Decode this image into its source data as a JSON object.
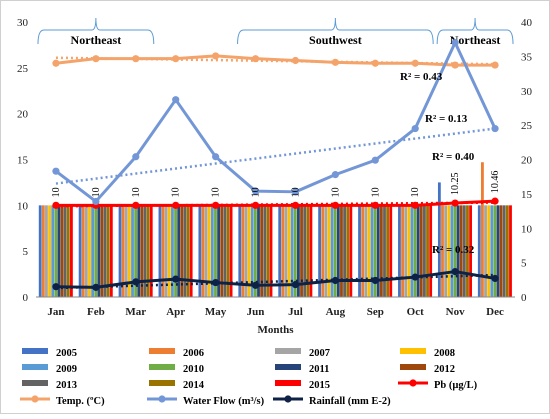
{
  "chart_data": {
    "type": "bar",
    "categories": [
      "Jan",
      "Feb",
      "Mar",
      "Apr",
      "May",
      "Jun",
      "Jul",
      "Aug",
      "Sep",
      "Oct",
      "Nov",
      "Dec"
    ],
    "xlabel": "Months",
    "ylim_left": [
      0,
      30
    ],
    "yticks_left": [
      0,
      5,
      10,
      15,
      20,
      25,
      30
    ],
    "ylim_right": [
      0,
      40
    ],
    "yticks_right": [
      0,
      5,
      10,
      15,
      20,
      25,
      30,
      35,
      40
    ],
    "grid": false,
    "legend_position": "bottom",
    "bar_series": [
      {
        "name": "2005",
        "color": "#4472c4",
        "values": [
          10,
          10,
          10,
          10,
          10,
          10,
          10,
          10,
          10,
          10,
          12.5,
          10
        ]
      },
      {
        "name": "2006",
        "color": "#ed7d31",
        "values": [
          10,
          10,
          10,
          10,
          10,
          10,
          10,
          10,
          10,
          10,
          10,
          14.7
        ]
      },
      {
        "name": "2007",
        "color": "#a5a5a5",
        "values": [
          10,
          10,
          10,
          10,
          10,
          10,
          10,
          10,
          10,
          10,
          10,
          10
        ]
      },
      {
        "name": "2008",
        "color": "#ffc000",
        "values": [
          10,
          10,
          10,
          10,
          10,
          10,
          10,
          10,
          10,
          10,
          10,
          10
        ]
      },
      {
        "name": "2009",
        "color": "#5b9bd5",
        "values": [
          10,
          10,
          10,
          10,
          10,
          10,
          10,
          10,
          10,
          10,
          10,
          10
        ]
      },
      {
        "name": "2010",
        "color": "#70ad47",
        "values": [
          10,
          10,
          10,
          10,
          10,
          10,
          10,
          10,
          10,
          10,
          10,
          10
        ]
      },
      {
        "name": "2011",
        "color": "#264478",
        "values": [
          10,
          10,
          10,
          10,
          10,
          10,
          10,
          10,
          10,
          10,
          10,
          10
        ]
      },
      {
        "name": "2012",
        "color": "#9e480e",
        "values": [
          10,
          10,
          10,
          10,
          10,
          10,
          10,
          10,
          10,
          10,
          10,
          10
        ]
      },
      {
        "name": "2013",
        "color": "#636363",
        "values": [
          10,
          10,
          10,
          10,
          10,
          10,
          10,
          10,
          10,
          10,
          10,
          10
        ]
      },
      {
        "name": "2014",
        "color": "#997300",
        "values": [
          10,
          10,
          10,
          10,
          10,
          10,
          10,
          10,
          10,
          10,
          10,
          10
        ]
      },
      {
        "name": "2015",
        "color": "#ff0000",
        "values": [
          10,
          10,
          10,
          10,
          10,
          10,
          10,
          10,
          10,
          10,
          10,
          10
        ]
      }
    ],
    "line_series": [
      {
        "name": "Pb (µg/L)",
        "axis": "left",
        "color": "#ff0000",
        "values": [
          10,
          10,
          10,
          10,
          10,
          10,
          10,
          10,
          10,
          10,
          10.25,
          10.46
        ]
      },
      {
        "name": "Temp. (ºC)",
        "axis": "left",
        "color": "#f4a46a",
        "values": [
          25.5,
          26,
          26,
          26,
          26.3,
          26,
          25.8,
          25.6,
          25.5,
          25.5,
          25.3,
          25.3
        ]
      },
      {
        "name": "Water Flow (m³/s)",
        "axis": "right",
        "color": "#7397d6",
        "values": [
          18.3,
          13.9,
          20.4,
          28.7,
          20.4,
          15.4,
          15.3,
          17.8,
          19.9,
          24.5,
          37,
          24.5
        ]
      },
      {
        "name": "Rainfall (mm E-2)",
        "axis": "right",
        "color": "#0d2245",
        "values": [
          1.5,
          1.4,
          2.2,
          2.6,
          2.1,
          1.7,
          1.8,
          2.4,
          2.4,
          2.9,
          3.7,
          2.7
        ]
      }
    ],
    "data_labels": [
      "10",
      "10",
      "10",
      "10",
      "10",
      "10",
      "10",
      "10",
      "10",
      "10",
      "10.25",
      "10.46"
    ],
    "trendlines": [
      {
        "series": "Temp. (ºC)",
        "axis": "left",
        "from": 26.1,
        "to": 25.4,
        "color": "#f4a46a",
        "r2_label": "R² = 0.43"
      },
      {
        "series": "Water Flow (m³/s)",
        "axis": "right",
        "from": 16.5,
        "to": 24.5,
        "color": "#7397d6",
        "r2_label": "R² = 0.13"
      },
      {
        "series": "Pb (µg/L)",
        "axis": "left",
        "from": 9.9,
        "to": 10.3,
        "color": "#ff0000",
        "r2_label": "R² = 0.40"
      },
      {
        "series": "Rainfall (mm E-2)",
        "axis": "right",
        "from": 1.3,
        "to": 3.2,
        "color": "#0d2245",
        "r2_label": "R² = 0.32"
      }
    ],
    "seasons": [
      {
        "label": "Northeast",
        "start": "Jan",
        "end": "Mar"
      },
      {
        "label": "Southwest",
        "start": "Jun",
        "end": "Oct"
      },
      {
        "label": "Northeast",
        "start": "Nov",
        "end": "Dec"
      }
    ]
  }
}
